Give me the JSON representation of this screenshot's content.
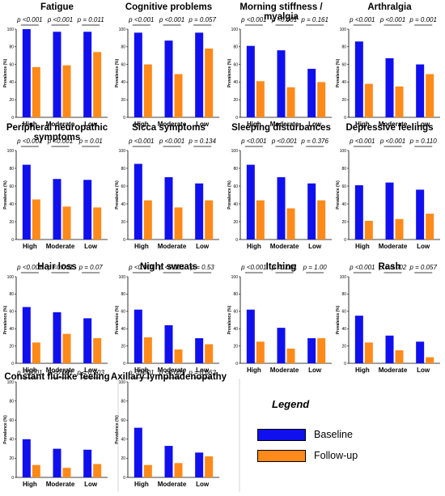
{
  "legend": {
    "title": "Legend",
    "items": [
      {
        "label": "Baseline",
        "color": "#1010ee"
      },
      {
        "label": "Follow-up",
        "color": "#ff8a1a"
      }
    ]
  },
  "chart_data": [
    {
      "type": "bar",
      "title": "Fatigue",
      "categories": [
        "High",
        "Moderate",
        "Low"
      ],
      "ylabel": "Prevalence (%)",
      "ylim": [
        0,
        100
      ],
      "yticks": [
        0,
        20,
        40,
        60,
        80,
        100
      ],
      "series": [
        {
          "name": "Baseline",
          "values": [
            100,
            97,
            97
          ]
        },
        {
          "name": "Follow-up",
          "values": [
            57,
            59,
            74
          ]
        }
      ],
      "pvalues": [
        "p <0.001",
        "p <0.001",
        "p = 0.011"
      ]
    },
    {
      "type": "bar",
      "title": "Cognitive problems",
      "categories": [
        "High",
        "Moderate",
        "Low"
      ],
      "ylabel": "Prevalence (%)",
      "ylim": [
        0,
        100
      ],
      "yticks": [
        0,
        20,
        40,
        60,
        80,
        100
      ],
      "series": [
        {
          "name": "Baseline",
          "values": [
            96,
            87,
            96
          ]
        },
        {
          "name": "Follow-up",
          "values": [
            60,
            49,
            78
          ]
        }
      ],
      "pvalues": [
        "p <0.001",
        "p <0.001",
        "p = 0.057"
      ]
    },
    {
      "type": "bar",
      "title": "Morning stiffness / myalgia",
      "categories": [
        "High",
        "Moderate",
        "Low"
      ],
      "ylabel": "Prevalence (%)",
      "ylim": [
        0,
        100
      ],
      "yticks": [
        0,
        20,
        40,
        60,
        80,
        100
      ],
      "series": [
        {
          "name": "Baseline",
          "values": [
            81,
            76,
            55
          ]
        },
        {
          "name": "Follow-up",
          "values": [
            41,
            34,
            40
          ]
        }
      ],
      "pvalues": [
        "p <0.001",
        "p <0.001",
        "p = 0.161"
      ]
    },
    {
      "type": "bar",
      "title": "Arthralgia",
      "categories": [
        "High",
        "Moderate",
        "Low"
      ],
      "ylabel": "Prevalence (%)",
      "ylim": [
        0,
        100
      ],
      "yticks": [
        0,
        20,
        40,
        60,
        80,
        100
      ],
      "series": [
        {
          "name": "Baseline",
          "values": [
            86,
            67,
            60
          ]
        },
        {
          "name": "Follow-up",
          "values": [
            38,
            35,
            49
          ]
        }
      ],
      "pvalues": [
        "p <0.001",
        "p <0.001",
        "p = 0.001"
      ]
    },
    {
      "type": "bar",
      "title": "Peripheral neuropathic symptoms",
      "categories": [
        "High",
        "Moderate",
        "Low"
      ],
      "ylabel": "Prevalence (%)",
      "ylim": [
        0,
        100
      ],
      "yticks": [
        0,
        20,
        40,
        60,
        80,
        100
      ],
      "series": [
        {
          "name": "Baseline",
          "values": [
            84,
            68,
            67
          ]
        },
        {
          "name": "Follow-up",
          "values": [
            45,
            37,
            36
          ]
        }
      ],
      "pvalues": [
        "p <0.001",
        "p <0.001",
        "p = 0.01"
      ]
    },
    {
      "type": "bar",
      "title": "Sicca symptoms",
      "categories": [
        "High",
        "Moderate",
        "Low"
      ],
      "ylabel": "Prevalence (%)",
      "ylim": [
        0,
        100
      ],
      "yticks": [
        0,
        20,
        40,
        60,
        80,
        100
      ],
      "series": [
        {
          "name": "Baseline",
          "values": [
            85,
            70,
            63
          ]
        },
        {
          "name": "Follow-up",
          "values": [
            44,
            36,
            44
          ]
        }
      ],
      "pvalues": [
        "p <0.001",
        "p <0.001",
        "p = 0.134"
      ]
    },
    {
      "type": "bar",
      "title": "Sleeping disturbances",
      "categories": [
        "High",
        "Moderate",
        "Low"
      ],
      "ylabel": "Prevalence (%)",
      "ylim": [
        0,
        100
      ],
      "yticks": [
        0,
        20,
        40,
        60,
        80,
        100
      ],
      "series": [
        {
          "name": "Baseline",
          "values": [
            84,
            70,
            63
          ]
        },
        {
          "name": "Follow-up",
          "values": [
            44,
            35,
            44
          ]
        }
      ],
      "pvalues": [
        "p <0.001",
        "p <0.001",
        "p = 0.376"
      ]
    },
    {
      "type": "bar",
      "title": "Depressive feelings",
      "categories": [
        "High",
        "Moderate",
        "Low"
      ],
      "ylabel": "Prevalence (%)",
      "ylim": [
        0,
        100
      ],
      "yticks": [
        0,
        20,
        40,
        60,
        80,
        100
      ],
      "series": [
        {
          "name": "Baseline",
          "values": [
            61,
            64,
            56
          ]
        },
        {
          "name": "Follow-up",
          "values": [
            21,
            23,
            29
          ]
        }
      ],
      "pvalues": [
        "p <0.001",
        "p <0.001",
        "p = 0.110"
      ]
    },
    {
      "type": "bar",
      "title": "Hair loss",
      "categories": [
        "High",
        "Moderate",
        "Low"
      ],
      "ylabel": "Prevalence (%)",
      "ylim": [
        0,
        100
      ],
      "yticks": [
        0,
        20,
        40,
        60,
        80,
        100
      ],
      "series": [
        {
          "name": "Baseline",
          "values": [
            65,
            59,
            52
          ]
        },
        {
          "name": "Follow-up",
          "values": [
            24,
            34,
            29
          ]
        }
      ],
      "pvalues": [
        "p <0.001",
        "p <0.001",
        "p = 0.07"
      ]
    },
    {
      "type": "bar",
      "title": "Night sweats",
      "categories": [
        "High",
        "Moderate",
        "Low"
      ],
      "ylabel": "Prevalence (%)",
      "ylim": [
        0,
        100
      ],
      "yticks": [
        0,
        20,
        40,
        60,
        80,
        100
      ],
      "series": [
        {
          "name": "Baseline",
          "values": [
            62,
            44,
            29
          ]
        },
        {
          "name": "Follow-up",
          "values": [
            30,
            16,
            22
          ]
        }
      ],
      "pvalues": [
        "p <0.001",
        "p <0.001",
        "p = 0.53"
      ]
    },
    {
      "type": "bar",
      "title": "Itching",
      "categories": [
        "High",
        "Moderate",
        "Low"
      ],
      "ylabel": "Prevalence (%)",
      "ylim": [
        0,
        100
      ],
      "yticks": [
        0,
        20,
        40,
        60,
        80,
        100
      ],
      "series": [
        {
          "name": "Baseline",
          "values": [
            62,
            41,
            29
          ]
        },
        {
          "name": "Follow-up",
          "values": [
            25,
            17,
            29
          ]
        }
      ],
      "pvalues": [
        "p <0.001",
        "p <0.001",
        "p = 1.00"
      ]
    },
    {
      "type": "bar",
      "title": "Rash",
      "categories": [
        "High",
        "Moderate",
        "Low"
      ],
      "ylabel": "Prevalence (%)",
      "ylim": [
        0,
        100
      ],
      "yticks": [
        0,
        20,
        40,
        60,
        80,
        100
      ],
      "series": [
        {
          "name": "Baseline",
          "values": [
            55,
            32,
            25
          ]
        },
        {
          "name": "Follow-up",
          "values": [
            24,
            15,
            7
          ]
        }
      ],
      "pvalues": [
        "p <0.001",
        "p = 0.002",
        "p = 0.057"
      ]
    },
    {
      "type": "bar",
      "title": "Constant flu-like feeling",
      "categories": [
        "High",
        "Moderate",
        "Low"
      ],
      "ylabel": "Prevalence (%)",
      "ylim": [
        0,
        100
      ],
      "yticks": [
        0,
        20,
        40,
        60,
        80,
        100
      ],
      "series": [
        {
          "name": "Baseline",
          "values": [
            40,
            30,
            29
          ]
        },
        {
          "name": "Follow-up",
          "values": [
            13,
            10,
            14
          ]
        }
      ],
      "pvalues": [
        "p <0.001",
        "p <0.001",
        "p = 0.103"
      ]
    },
    {
      "type": "bar",
      "title": "Axillary lymphadenopathy",
      "categories": [
        "High",
        "Moderate",
        "Low"
      ],
      "ylabel": "Prevalence (%)",
      "ylim": [
        0,
        100
      ],
      "yticks": [
        0,
        20,
        40,
        60,
        80,
        100
      ],
      "series": [
        {
          "name": "Baseline",
          "values": [
            52,
            33,
            26
          ]
        },
        {
          "name": "Follow-up",
          "values": [
            13,
            15,
            22
          ]
        }
      ],
      "pvalues": [
        "p <0.001",
        "p <0.001",
        "p = 0.663"
      ]
    }
  ]
}
